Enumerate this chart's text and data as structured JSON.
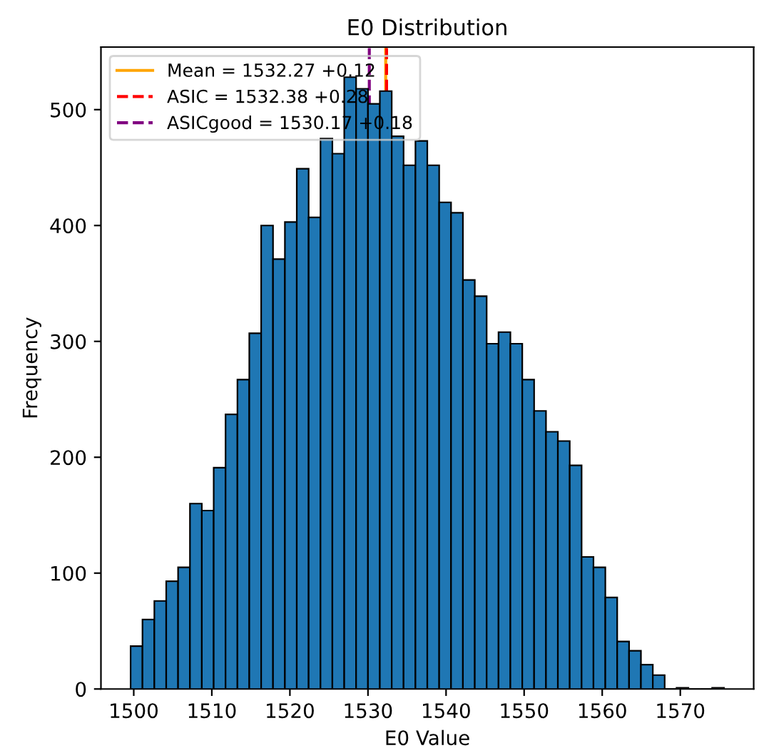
{
  "chart_data": {
    "type": "histogram",
    "title": "E0 Distribution",
    "xlabel": "E0 Value",
    "ylabel": "Frequency",
    "color": "#1f77b4",
    "bins": [
      1499.6,
      1501.12,
      1502.64,
      1504.16,
      1505.68,
      1507.2,
      1508.72,
      1510.24,
      1511.76,
      1513.28,
      1514.8,
      1516.32,
      1517.84,
      1519.36,
      1520.88,
      1522.4,
      1523.92,
      1525.44,
      1526.96,
      1528.48,
      1530.0,
      1531.52,
      1533.04,
      1534.56,
      1536.08,
      1537.6,
      1539.12,
      1540.64,
      1542.16,
      1543.68,
      1545.2,
      1546.72,
      1548.24,
      1549.76,
      1551.28,
      1552.8,
      1554.32,
      1555.84,
      1557.36,
      1558.88,
      1560.4,
      1561.92,
      1563.44,
      1564.96,
      1566.48,
      1568.0,
      1569.52,
      1571.04,
      1572.56,
      1574.08,
      1575.6
    ],
    "values": [
      37,
      60,
      76,
      93,
      105,
      160,
      154,
      191,
      237,
      267,
      307,
      400,
      371,
      403,
      449,
      407,
      475,
      462,
      528,
      518,
      505,
      516,
      477,
      452,
      473,
      452,
      420,
      411,
      353,
      339,
      298,
      308,
      298,
      267,
      240,
      222,
      214,
      193,
      114,
      105,
      79,
      41,
      33,
      21,
      12,
      0,
      1,
      0,
      0,
      1
    ],
    "xlim": [
      1495.8,
      1579.4
    ],
    "xticks": [
      1500,
      1510,
      1520,
      1530,
      1540,
      1550,
      1560,
      1570
    ],
    "ylim": [
      0,
      554
    ],
    "yticks": [
      0,
      100,
      200,
      300,
      400,
      500
    ],
    "ref_lines": [
      {
        "axis": "x",
        "value": 1532.27,
        "label": "Mean = 1532.27 +0.12",
        "color": "#ffa500",
        "line_style": "solid"
      },
      {
        "axis": "x",
        "value": 1532.38,
        "label": "ASIC = 1532.38 +0.28",
        "color": "#ff0000",
        "line_style": "dashed"
      },
      {
        "axis": "x",
        "value": 1530.17,
        "label": "ASICgood = 1530.17 +0.18",
        "color": "#800080",
        "line_style": "dashed"
      }
    ],
    "legend": "top left",
    "grid": false
  }
}
